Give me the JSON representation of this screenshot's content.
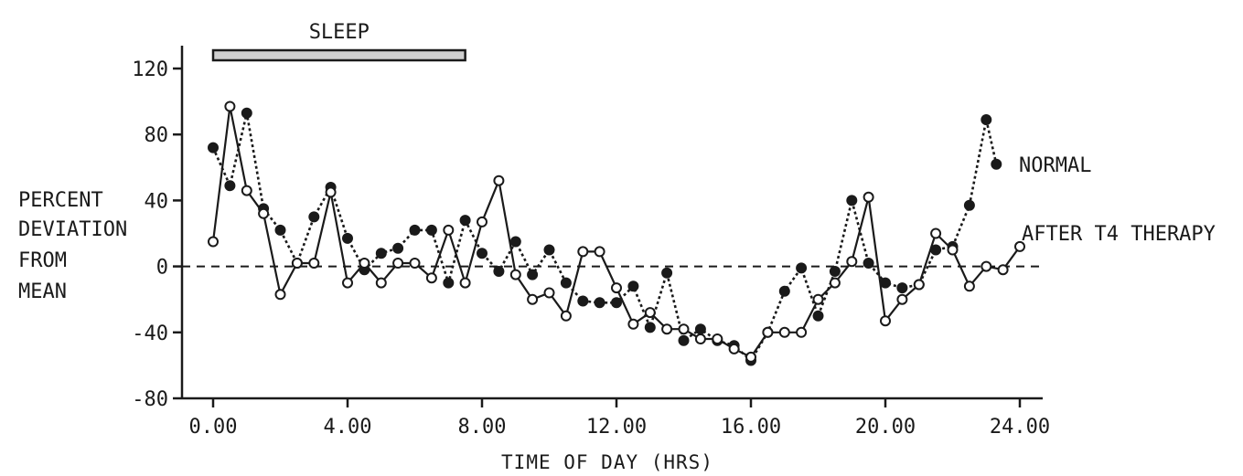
{
  "chart_data": {
    "type": "line",
    "title": "",
    "xlabel": "TIME OF DAY (HRS)",
    "ylabel_lines": [
      "PERCENT",
      "DEVIATION",
      "FROM",
      "MEAN"
    ],
    "xlim": [
      0,
      24
    ],
    "ylim": [
      -80,
      120
    ],
    "xticks": [
      0,
      4,
      8,
      12,
      16,
      20,
      24
    ],
    "xtick_labels": [
      "0.00",
      "4.00",
      "8.00",
      "12.00",
      "16.00",
      "20.00",
      "24.00"
    ],
    "yticks": [
      -80,
      -40,
      0,
      40,
      80,
      120
    ],
    "ytick_labels": [
      "-80",
      "-40",
      "0",
      "40",
      "80",
      "120"
    ],
    "grid": false,
    "zero_line": "dashed",
    "sleep_bar": {
      "label": "SLEEP",
      "start": 0,
      "end": 7.5
    },
    "series": [
      {
        "name": "NORMAL",
        "style": "dotted",
        "marker": "filled",
        "color": "#1a1a1a",
        "x": [
          0,
          0.5,
          1,
          1.5,
          2,
          2.5,
          3,
          3.5,
          4,
          4.5,
          5,
          5.5,
          6,
          6.5,
          7,
          7.5,
          8,
          8.5,
          9,
          9.5,
          10,
          10.5,
          11,
          11.5,
          12,
          12.5,
          13,
          13.5,
          14,
          14.5,
          15,
          15.5,
          16,
          16.5,
          17,
          17.5,
          18,
          18.5,
          19,
          19.5,
          20,
          20.5,
          21,
          21.5,
          22,
          22.5,
          23,
          23.3
        ],
        "y": [
          72,
          49,
          93,
          35,
          22,
          2,
          30,
          48,
          17,
          -2,
          8,
          11,
          22,
          22,
          -10,
          28,
          8,
          -3,
          15,
          -5,
          10,
          -10,
          -21,
          -22,
          -22,
          -12,
          -37,
          -4,
          -45,
          -38,
          -45,
          -48,
          -57,
          -40,
          -15,
          -1,
          -30,
          -3,
          40,
          2,
          -10,
          -13,
          -11,
          10,
          12,
          37,
          89,
          62
        ]
      },
      {
        "name": "AFTER T4 THERAPY",
        "style": "solid",
        "marker": "open",
        "color": "#1a1a1a",
        "x": [
          0,
          0.5,
          1,
          1.5,
          2,
          2.5,
          3,
          3.5,
          4,
          4.5,
          5,
          5.5,
          6,
          6.5,
          7,
          7.5,
          8,
          8.5,
          9,
          9.5,
          10,
          10.5,
          11,
          11.5,
          12,
          12.5,
          13,
          13.5,
          14,
          14.5,
          15,
          15.5,
          16,
          16.5,
          17,
          17.5,
          18,
          18.5,
          19,
          19.5,
          20,
          20.5,
          21,
          21.5,
          22,
          22.5,
          23,
          23.5,
          24
        ],
        "y": [
          15,
          97,
          46,
          32,
          -17,
          2,
          2,
          45,
          -10,
          2,
          -10,
          2,
          2,
          -7,
          22,
          -10,
          27,
          52,
          -5,
          -20,
          -16,
          -30,
          9,
          9,
          -13,
          -35,
          -28,
          -38,
          -38,
          -44,
          -44,
          -50,
          -55,
          -40,
          -40,
          -40,
          -20,
          -10,
          3,
          42,
          -33,
          -20,
          -11,
          20,
          10,
          -12,
          0,
          -2,
          12
        ]
      }
    ]
  }
}
